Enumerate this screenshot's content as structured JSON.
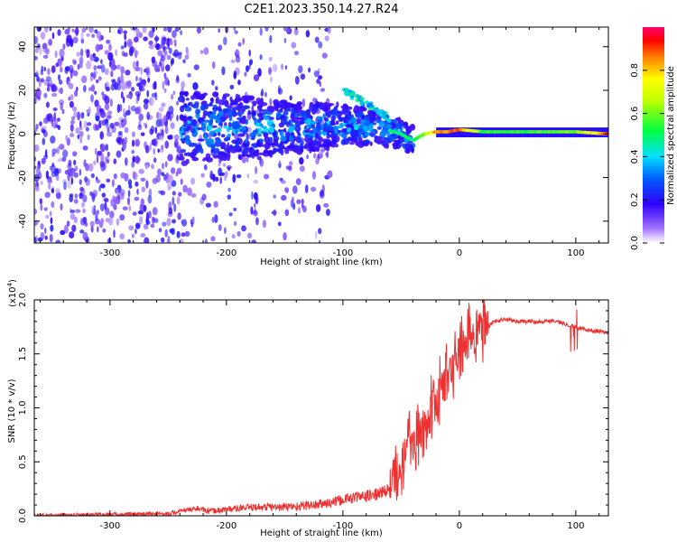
{
  "figure_title": "C2E1.2023.350.14.27.R24",
  "chart_data": [
    {
      "type": "heatmap",
      "title": "C2E1.2023.350.14.27.R24",
      "xlabel": "Height of straight line (km)",
      "ylabel": "Frequency (Hz)",
      "xlim": [
        -365,
        128
      ],
      "ylim": [
        -50,
        49
      ],
      "x_ticks": [
        -300,
        -200,
        -100,
        0,
        100
      ],
      "y_ticks": [
        -40,
        -20,
        0,
        20,
        40
      ],
      "x_tick_labels": [
        "-300",
        "-200",
        "-100",
        "0",
        "100"
      ],
      "y_tick_labels": [
        "-40",
        "-20",
        "0",
        "20",
        "40"
      ],
      "colorbar": {
        "label": "Normalized spectral amplitude",
        "range": [
          0,
          1
        ],
        "ticks": [
          0.0,
          0.2,
          0.4,
          0.6,
          0.8
        ],
        "tick_labels": [
          "0.0",
          "0.2",
          "0.4",
          "0.6",
          "0.8"
        ]
      },
      "ridge": {
        "description": "Spectral ridge frequency vs height",
        "x": [
          -240,
          -200,
          -150,
          -100,
          -70,
          -50,
          -40,
          -30,
          -20,
          -10,
          0,
          20,
          60,
          100,
          128
        ],
        "y": [
          3,
          3,
          3,
          4,
          3,
          0,
          -3,
          0,
          1,
          1,
          2,
          1,
          1,
          1,
          0
        ],
        "amplitude": [
          0.2,
          0.25,
          0.3,
          0.35,
          0.45,
          0.5,
          0.5,
          0.6,
          0.85,
          0.85,
          0.9,
          0.55,
          0.55,
          0.6,
          0.9
        ]
      },
      "diagonal_branch": {
        "x": [
          -100,
          -90,
          -80,
          -70,
          -60
        ],
        "y": [
          20,
          17,
          14,
          11,
          7
        ]
      }
    },
    {
      "type": "line",
      "xlabel": "Height of straight line (km)",
      "ylabel": "SNR (10 * v/v)",
      "multiplier_label": "(x10",
      "multiplier_exponent": "4",
      "multiplier_close": ")",
      "xlim": [
        -365,
        128
      ],
      "ylim": [
        0,
        2.0
      ],
      "x_ticks": [
        -300,
        -200,
        -100,
        0,
        100
      ],
      "y_ticks": [
        0.0,
        0.5,
        1.0,
        1.5,
        2.0
      ],
      "x_tick_labels": [
        "-300",
        "-200",
        "-100",
        "0",
        "100"
      ],
      "y_tick_labels": [
        "0.0",
        "0.5",
        "1.0",
        "1.5",
        "2.0"
      ],
      "color": "#ee3030",
      "series": [
        {
          "name": "SNR",
          "x": [
            -365,
            -300,
            -250,
            -225,
            -215,
            -200,
            -175,
            -150,
            -125,
            -110,
            -100,
            -90,
            -80,
            -70,
            -60,
            -50,
            -45,
            -40,
            -35,
            -30,
            -25,
            -20,
            -15,
            -10,
            -5,
            0,
            5,
            10,
            15,
            20,
            25,
            30,
            40,
            50,
            60,
            70,
            80,
            90,
            100,
            110,
            128
          ],
          "y": [
            0.0,
            0.01,
            0.02,
            0.07,
            0.04,
            0.06,
            0.08,
            0.08,
            0.1,
            0.12,
            0.15,
            0.17,
            0.18,
            0.2,
            0.25,
            0.45,
            0.75,
            0.65,
            0.7,
            0.8,
            0.95,
            1.05,
            1.2,
            1.3,
            1.4,
            1.5,
            1.6,
            1.68,
            1.72,
            1.75,
            1.76,
            1.8,
            1.82,
            1.8,
            1.8,
            1.8,
            1.81,
            1.78,
            1.75,
            1.72,
            1.7
          ]
        }
      ]
    }
  ]
}
